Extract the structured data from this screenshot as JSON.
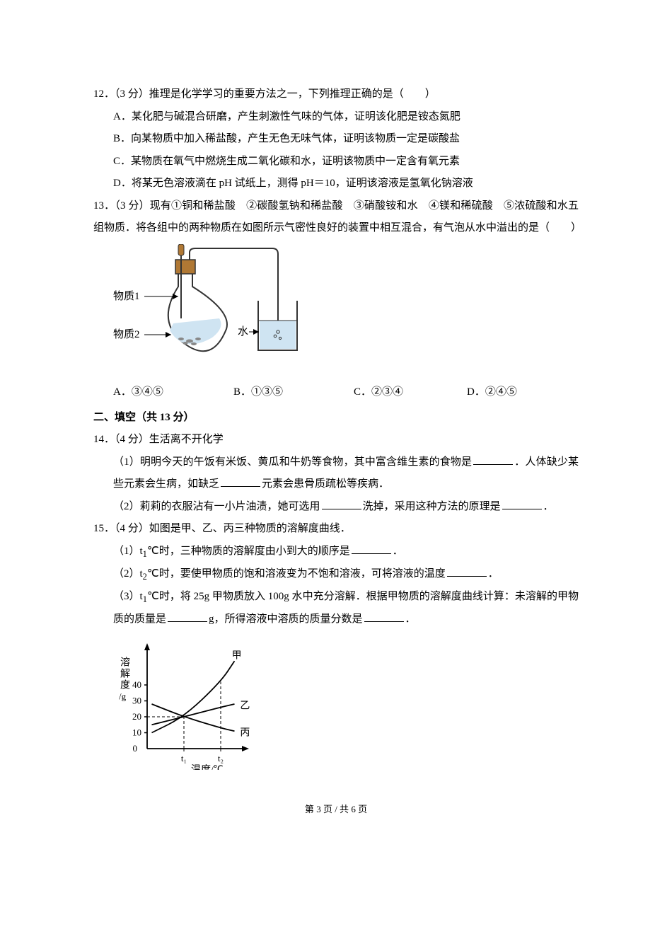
{
  "q12": {
    "head": "12．（3 分）推理是化学学习的重要方法之一，下列推理正确的是（　　）",
    "opts": {
      "A": "A．某化肥与碱混合研磨，产生刺激性气味的气体，证明该化肥是铵态氮肥",
      "B": "B．向某物质中加入稀盐酸，产生无色无味气体，证明该物质一定是碳酸盐",
      "C": "C．某物质在氧气中燃烧生成二氧化碳和水，证明该物质中一定含有氧元素",
      "D": "D．将某无色溶液滴在 pH 试纸上，测得 pH＝10，证明该溶液是氢氧化钠溶液"
    }
  },
  "q13": {
    "head": "13．（3 分）现有①铜和稀盐酸　②碳酸氢钠和稀盐酸　③硝酸铵和水　④镁和稀硫酸　⑤浓硫酸和水五组物质．将各组中的两种物质在如图所示气密性良好的装置中相互混合，有气泡从水中溢出的是（　　）",
    "appar": {
      "label1": "物质1",
      "label2": "物质2",
      "waterLabel": "水",
      "colors": {
        "liquid": "#cfe4f2",
        "stopper": "#b07834",
        "tube": "#333333",
        "outline": "#333333",
        "bg": "#ffffff"
      }
    },
    "opts": {
      "A": "A．③④⑤",
      "B": "B．①③⑤",
      "C": "C．②③④",
      "D": "D．②④⑤"
    }
  },
  "section2": "二、填空（共 13 分）",
  "q14": {
    "head": "14．（4 分）生活离不开化学",
    "p1a": "（1）明明今天的午饭有米饭、黄瓜和牛奶等食物，其中富含维生素的食物是",
    "p1b": "．人体缺少某些元素会生病，如缺乏",
    "p1c": "元素会患骨质疏松等疾病．",
    "p2a": "（2）莉莉的衣服沾有一小片油渍，她可选用",
    "p2b": "洗掉，采用这种方法的原理是",
    "p2c": "．"
  },
  "q15": {
    "head": "15．（4 分）如图是甲、乙、丙三种物质的溶解度曲线．",
    "p1a": "（1）t",
    "p1sub": "1",
    "p1b": "℃时，三种物质的溶解度由小到大的顺序是",
    "p1c": "．",
    "p2a": "（2）t",
    "p2sub": "2",
    "p2b": "℃时，要使甲物质的饱和溶液变为不饱和溶液，可将溶液的温度",
    "p2c": "．",
    "p3a": "（3）t",
    "p3sub": "1",
    "p3b": "℃时，将 25g 甲物质放入 100g 水中充分溶解．根据甲物质的溶解度曲线计算：未溶解的甲物质的质量是",
    "p3c": "g，所得溶液中溶质的质量分数是",
    "p3d": "．",
    "chart": {
      "ylabel1": "溶",
      "ylabel2": "解",
      "ylabel3": "度",
      "yunit": "/g",
      "xlabel": "温度/℃",
      "yticks": [
        0,
        10,
        20,
        30,
        40
      ],
      "xticks": [
        "t₁",
        "t₂"
      ],
      "series": {
        "jia": {
          "label": "甲",
          "color": "#000",
          "points": [
            [
              0.05,
              10
            ],
            [
              0.4,
              20
            ],
            [
              0.8,
              42
            ],
            [
              0.95,
              55
            ]
          ],
          "type": "curve"
        },
        "yi": {
          "label": "乙",
          "color": "#000",
          "points": [
            [
              0.05,
              15
            ],
            [
              0.4,
              20
            ],
            [
              0.8,
              26
            ],
            [
              0.95,
              28
            ]
          ],
          "type": "curve"
        },
        "bing": {
          "label": "丙",
          "color": "#000",
          "points": [
            [
              0.05,
              28
            ],
            [
              0.4,
              20
            ],
            [
              0.8,
              13
            ],
            [
              0.95,
              11
            ]
          ],
          "type": "curve"
        }
      },
      "y_max": 60,
      "axis_color": "#000",
      "dash_color": "#000",
      "bg": "#ffffff"
    }
  },
  "footer": {
    "text_left": "第 ",
    "page": "3",
    "text_mid": " 页 / 共 ",
    "total": "6",
    "text_right": " 页"
  }
}
